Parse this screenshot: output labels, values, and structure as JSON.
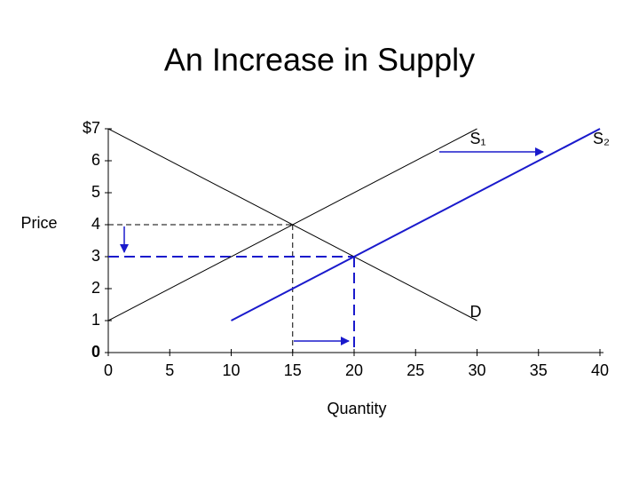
{
  "chart_data": {
    "type": "line",
    "title": "An Increase in Supply",
    "x_label": "Quantity",
    "y_label": "Price",
    "xlim": [
      0,
      40
    ],
    "ylim": [
      0,
      7
    ],
    "xticks": [
      0,
      5,
      10,
      15,
      20,
      25,
      30,
      35,
      40
    ],
    "yticks": [
      0,
      1,
      2,
      3,
      4,
      5,
      6,
      {
        "value": 7,
        "label": "$7"
      }
    ],
    "series": [
      {
        "name": "D",
        "color": "#000000",
        "x": [
          0,
          30
        ],
        "values": [
          7,
          1
        ]
      },
      {
        "name": "S₁",
        "color": "#000000",
        "x": [
          0,
          30
        ],
        "values": [
          1,
          7
        ]
      },
      {
        "name": "S₂",
        "color": "#1a1acc",
        "x": [
          10,
          40
        ],
        "values": [
          1,
          7
        ]
      }
    ],
    "equilibria": [
      {
        "x": 15,
        "y": 4,
        "color": "#000000"
      },
      {
        "x": 20,
        "y": 3,
        "color": "#1a1acc"
      }
    ]
  }
}
